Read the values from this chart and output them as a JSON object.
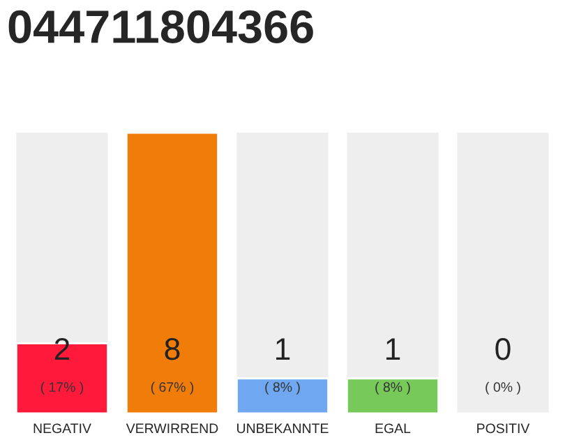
{
  "chart_data": {
    "type": "bar",
    "title": "044711804366",
    "categories": [
      "NEGATIV",
      "VERWIRREND",
      "UNBEKANNTE",
      "EGAL",
      "POSITIV"
    ],
    "values": [
      2,
      8,
      1,
      1,
      0
    ],
    "colors": [
      "#ff1a3c",
      "#f07d0a",
      "#6fa8f0",
      "#77c95a",
      null
    ],
    "value_labels": [
      "2\n( 17% )",
      "8\n( 67% )",
      "1\n( 8% )",
      "1\n( 8% )",
      "0\n( 0% )"
    ],
    "ylim": [
      0,
      8
    ],
    "tick_labels": "x",
    "grid": false,
    "legend": false
  }
}
